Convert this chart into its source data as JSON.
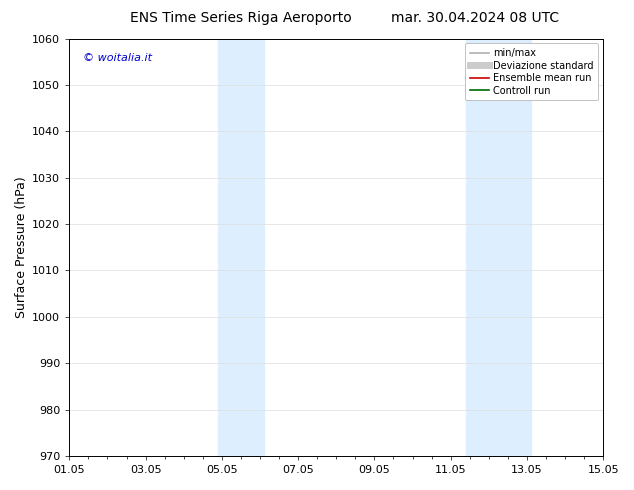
{
  "title_left": "ENS Time Series Riga Aeroporto",
  "title_right": "mar. 30.04.2024 08 UTC",
  "ylabel": "Surface Pressure (hPa)",
  "ylim": [
    970,
    1060
  ],
  "yticks": [
    970,
    980,
    990,
    1000,
    1010,
    1020,
    1030,
    1040,
    1050,
    1060
  ],
  "xlim": [
    0,
    14
  ],
  "xtick_labels": [
    "01.05",
    "03.05",
    "05.05",
    "07.05",
    "09.05",
    "11.05",
    "13.05",
    "15.05"
  ],
  "xtick_positions": [
    0,
    2,
    4,
    6,
    8,
    10,
    12,
    14
  ],
  "shaded_bands": [
    {
      "x_start": 3.9,
      "x_end": 5.1,
      "color": "#ddeeff"
    },
    {
      "x_start": 10.4,
      "x_end": 12.1,
      "color": "#ddeeff"
    }
  ],
  "watermark_text": "© woitalia.it",
  "watermark_color": "#0000cc",
  "background_color": "#ffffff",
  "legend_items": [
    {
      "label": "min/max",
      "color": "#b0b0b0",
      "linestyle": "-",
      "linewidth": 1.2
    },
    {
      "label": "Deviazione standard",
      "color": "#cccccc",
      "linestyle": "-",
      "linewidth": 5
    },
    {
      "label": "Ensemble mean run",
      "color": "#cc0000",
      "linestyle": "-",
      "linewidth": 1.2
    },
    {
      "label": "Controll run",
      "color": "#006600",
      "linestyle": "-",
      "linewidth": 1.2
    }
  ],
  "title_fontsize": 10,
  "axis_label_fontsize": 9,
  "tick_fontsize": 8,
  "legend_fontsize": 7,
  "watermark_fontsize": 8
}
